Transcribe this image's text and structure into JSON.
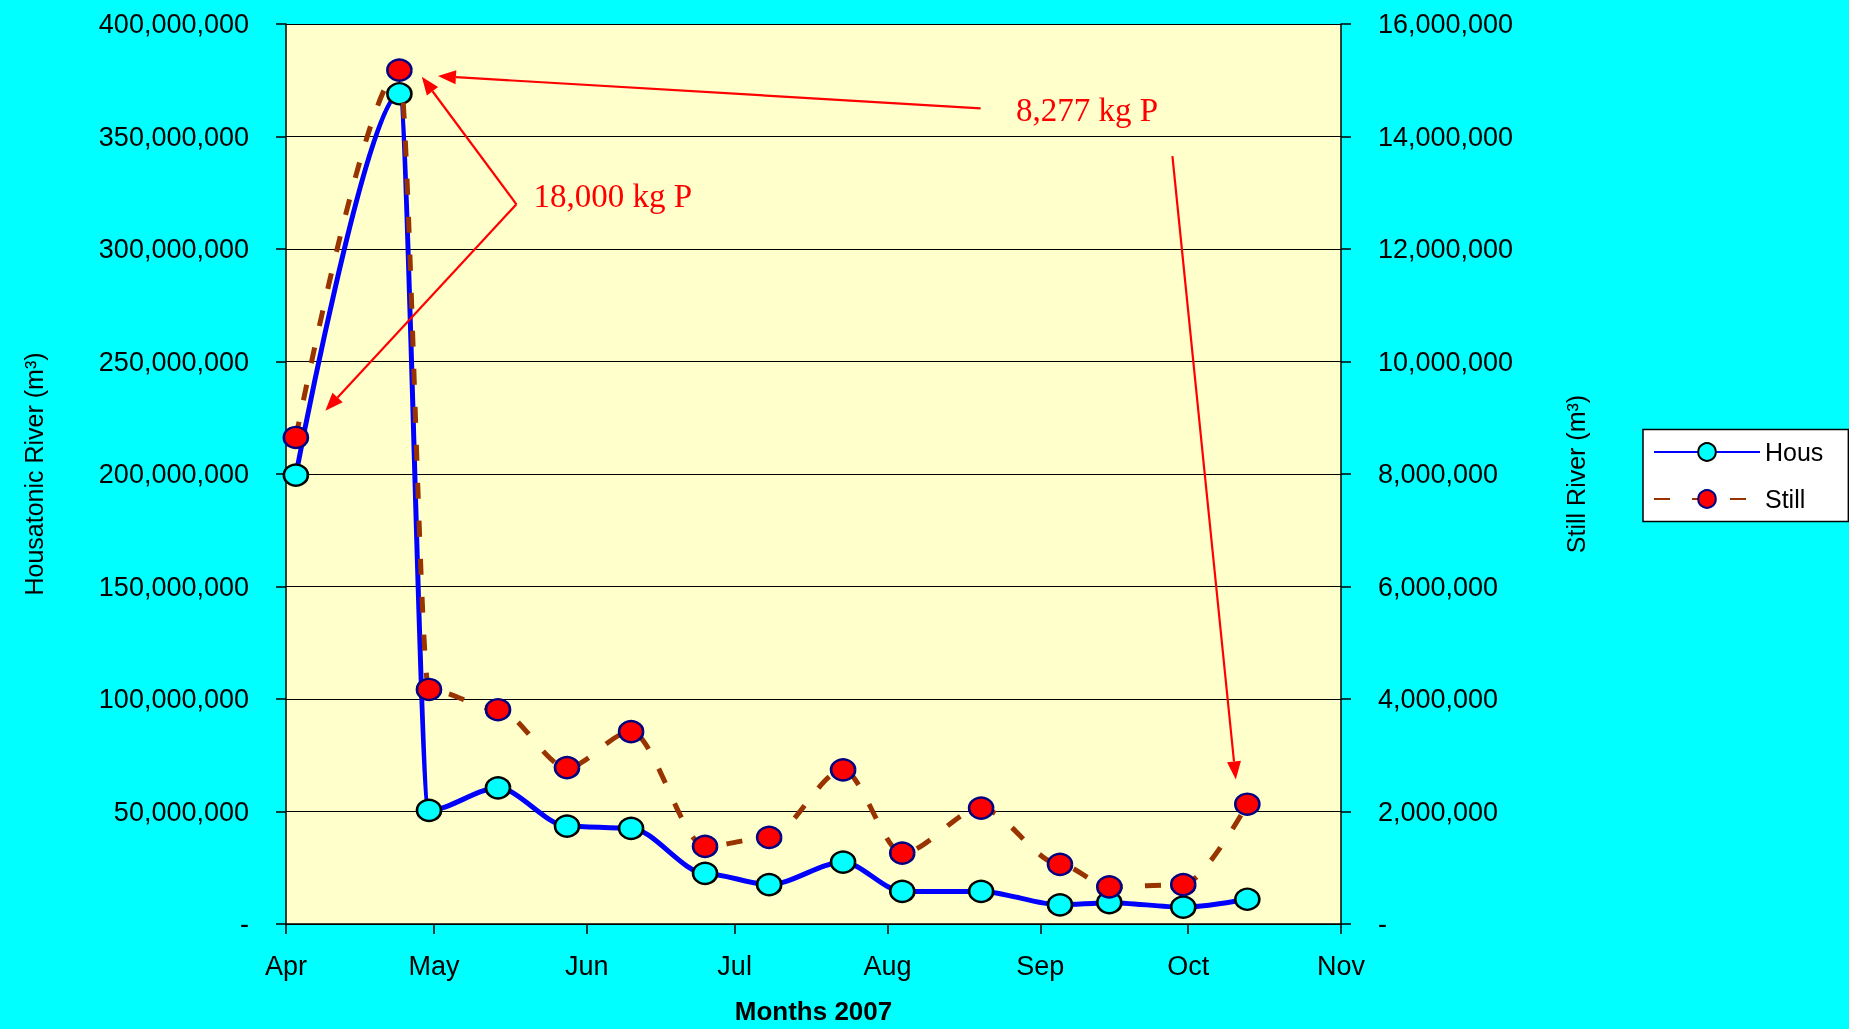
{
  "chart_data": {
    "type": "line",
    "xlabel": "Months 2007",
    "ylabel": "Housatonic River (m³)",
    "y2label": "Still River (m³)",
    "x": [
      "2007-04-03",
      "2007-04-24",
      "2007-04-30",
      "2007-05-14",
      "2007-05-28",
      "2007-06-10",
      "2007-06-25",
      "2007-07-08",
      "2007-07-23",
      "2007-08-04",
      "2007-08-20",
      "2007-09-05",
      "2007-09-15",
      "2007-09-30",
      "2007-10-13"
    ],
    "xlim": [
      "2007-04-01",
      "2007-11-01"
    ],
    "xticks": [
      {
        "value": "2007-04-01",
        "label": "Apr"
      },
      {
        "value": "2007-05-01",
        "label": "May"
      },
      {
        "value": "2007-06-01",
        "label": "Jun"
      },
      {
        "value": "2007-07-01",
        "label": "Jul"
      },
      {
        "value": "2007-08-01",
        "label": "Aug"
      },
      {
        "value": "2007-09-01",
        "label": "Sep"
      },
      {
        "value": "2007-10-01",
        "label": "Oct"
      },
      {
        "value": "2007-11-01",
        "label": "Nov"
      }
    ],
    "ylim": [
      0,
      400000000
    ],
    "yticks": [
      {
        "value": 0,
        "label": "-"
      },
      {
        "value": 50000000,
        "label": "50,000,000"
      },
      {
        "value": 100000000,
        "label": "100,000,000"
      },
      {
        "value": 150000000,
        "label": "150,000,000"
      },
      {
        "value": 200000000,
        "label": "200,000,000"
      },
      {
        "value": 250000000,
        "label": "250,000,000"
      },
      {
        "value": 300000000,
        "label": "300,000,000"
      },
      {
        "value": 350000000,
        "label": "350,000,000"
      },
      {
        "value": 400000000,
        "label": "400,000,000"
      }
    ],
    "y2lim": [
      0,
      16000000
    ],
    "y2ticks": [
      {
        "value": 0,
        "label": "-"
      },
      {
        "value": 2000000,
        "label": "2,000,000"
      },
      {
        "value": 4000000,
        "label": "4,000,000"
      },
      {
        "value": 6000000,
        "label": "6,000,000"
      },
      {
        "value": 8000000,
        "label": "8,000,000"
      },
      {
        "value": 10000000,
        "label": "10,000,000"
      },
      {
        "value": 12000000,
        "label": "12,000,000"
      },
      {
        "value": 14000000,
        "label": "14,000,000"
      },
      {
        "value": 16000000,
        "label": "16,000,000"
      }
    ],
    "series": [
      {
        "name": "Hous",
        "color": "#0000ff",
        "colors": [
          "#00ffff",
          "#00ffff",
          "#00ffff",
          "#00ffff",
          "#00ffff",
          "#00ffff",
          "#00ffff",
          "#00ffff",
          "#00ffff",
          "#00ffff",
          "#00ffff",
          "#00ffff",
          "#00ffff",
          "#00ffff",
          "#00ffff"
        ],
        "line_style": "solid",
        "values": [
          199500000,
          369000000,
          50500000,
          60500000,
          43500000,
          42500000,
          22500000,
          17500000,
          27500000,
          14500000,
          14500000,
          8500000,
          9500000,
          7500000,
          11000000
        ]
      },
      {
        "name": "Still",
        "color": "#993300",
        "colors": [
          "#ff0000",
          "#ff0000",
          "#ff0000",
          "#ff0000",
          "#ff0000",
          "#ff0000",
          "#ff0000",
          "#ff0000",
          "#ff0000",
          "#ff0000",
          "#ff0000",
          "#ff0000",
          "#ff0000",
          "#ff0000",
          "#ff0000"
        ],
        "line_style": "dashed",
        "axis": "y2",
        "values": [
          8650000,
          15180000,
          4170000,
          3810000,
          2780000,
          3420000,
          1380000,
          1540000,
          2740000,
          1260000,
          2060000,
          1060000,
          660000,
          700000,
          2130000
        ]
      }
    ],
    "marker": "circle",
    "grid": "y",
    "legend": "right",
    "annotations": [
      "18,000 kg P",
      "8,277 kg P"
    ]
  }
}
